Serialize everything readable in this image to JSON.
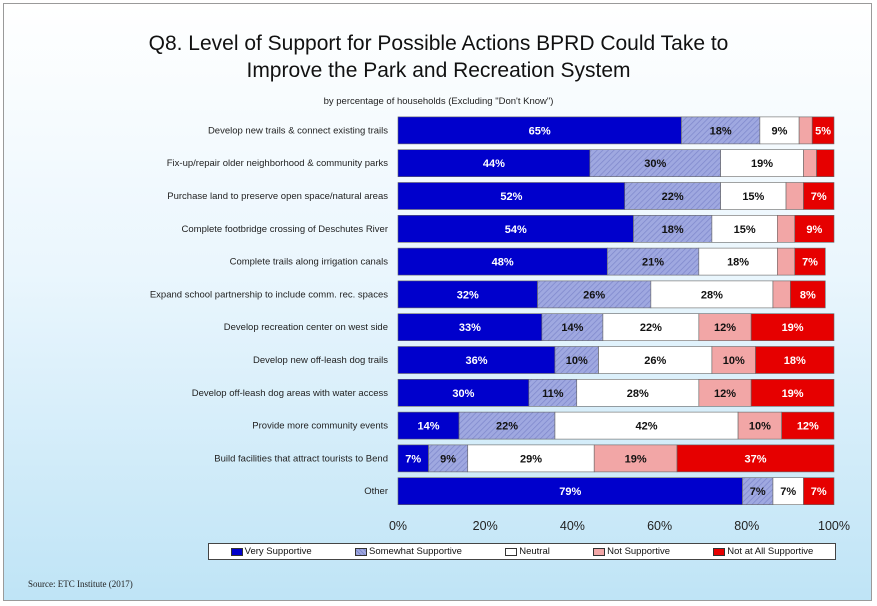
{
  "chart_data": {
    "type": "bar",
    "orientation": "horizontal",
    "stacked": true,
    "title": "Q8. Level of Support for Possible Actions BPRD Could Take to Improve the Park and Recreation System",
    "title_lines": [
      "Q8. Level of Support for Possible Actions BPRD Could Take to",
      "Improve the Park and Recreation System"
    ],
    "subtitle": "by percentage of households (Excluding \"Don't Know\")",
    "source": "Source:  ETC Institute (2017)",
    "categories": [
      "Develop new trails & connect existing trails",
      "Fix-up/repair older neighborhood & community parks",
      "Purchase land to preserve open space/natural areas",
      "Complete footbridge crossing of Deschutes River",
      "Complete trails along irrigation canals",
      "Expand school partnership to include comm. rec. spaces",
      "Develop recreation center on west side",
      "Develop new off-leash dog trails",
      "Develop off-leash dog areas with water access",
      "Provide more community events",
      "Build facilities that attract tourists to Bend",
      "Other"
    ],
    "series": [
      {
        "name": "Very Supportive",
        "color": "#0000cc",
        "values": [
          65,
          44,
          52,
          54,
          48,
          32,
          33,
          36,
          30,
          14,
          7,
          79
        ]
      },
      {
        "name": "Somewhat Supportive",
        "color": "#9fa8e0",
        "values": [
          18,
          30,
          22,
          18,
          21,
          26,
          14,
          10,
          11,
          22,
          9,
          7
        ]
      },
      {
        "name": "Neutral",
        "color": "#ffffff",
        "values": [
          9,
          19,
          15,
          15,
          18,
          28,
          22,
          26,
          28,
          42,
          29,
          7
        ]
      },
      {
        "name": "Not Supportive",
        "color": "#f2a6a6",
        "values": [
          3,
          3,
          4,
          4,
          4,
          4,
          12,
          10,
          12,
          10,
          19,
          0
        ]
      },
      {
        "name": "Not at All Supportive",
        "color": "#e60000",
        "values": [
          5,
          4,
          7,
          9,
          7,
          8,
          19,
          18,
          19,
          12,
          37,
          7
        ]
      }
    ],
    "data_labels": [
      [
        "65%",
        "18%",
        "9%",
        "",
        "5%"
      ],
      [
        "44%",
        "30%",
        "19%",
        "",
        ""
      ],
      [
        "52%",
        "22%",
        "15%",
        "",
        "7%"
      ],
      [
        "54%",
        "18%",
        "15%",
        "",
        "9%"
      ],
      [
        "48%",
        "21%",
        "18%",
        "",
        "7%"
      ],
      [
        "32%",
        "26%",
        "28%",
        "",
        "8%"
      ],
      [
        "33%",
        "14%",
        "22%",
        "12%",
        "19%"
      ],
      [
        "36%",
        "10%",
        "26%",
        "10%",
        "18%"
      ],
      [
        "30%",
        "11%",
        "28%",
        "12%",
        "19%"
      ],
      [
        "14%",
        "22%",
        "42%",
        "10%",
        "12%"
      ],
      [
        "7%",
        "9%",
        "29%",
        "19%",
        "37%"
      ],
      [
        "79%",
        "7%",
        "7%",
        "",
        "7%"
      ]
    ],
    "xlim": [
      0,
      100
    ],
    "xticks": [
      "0%",
      "20%",
      "40%",
      "60%",
      "80%",
      "100%"
    ],
    "grid": false,
    "legend_position": "bottom"
  }
}
